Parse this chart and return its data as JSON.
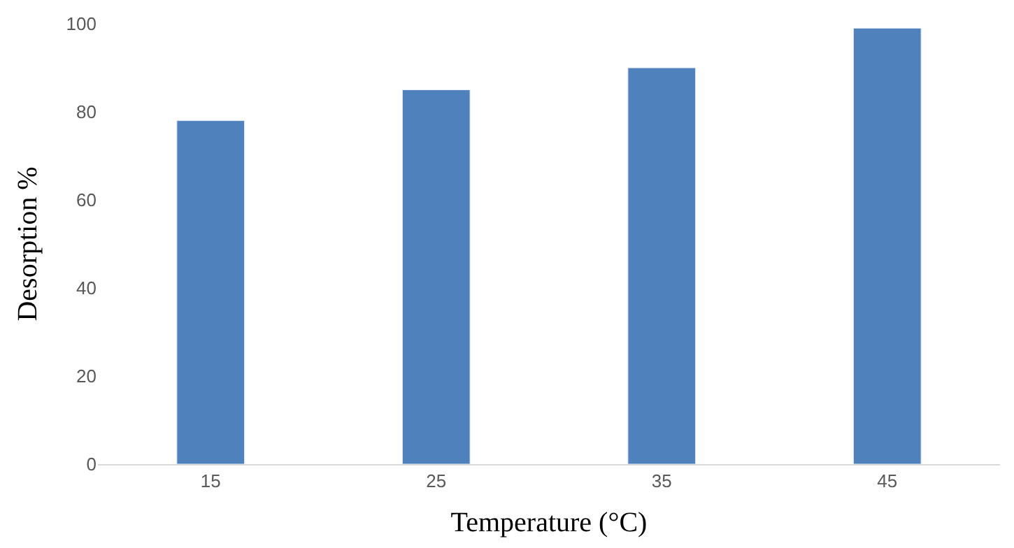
{
  "chart_data": {
    "type": "bar",
    "xlabel": "Temperature (°C)",
    "ylabel": "Desorption %",
    "categories": [
      "15",
      "25",
      "35",
      "45"
    ],
    "values": [
      78,
      85,
      90,
      99
    ],
    "color": "#4f81bd",
    "ylim": [
      0,
      100
    ],
    "yticks": [
      0,
      20,
      40,
      60,
      80,
      100
    ],
    "grid": false,
    "legend": false
  }
}
